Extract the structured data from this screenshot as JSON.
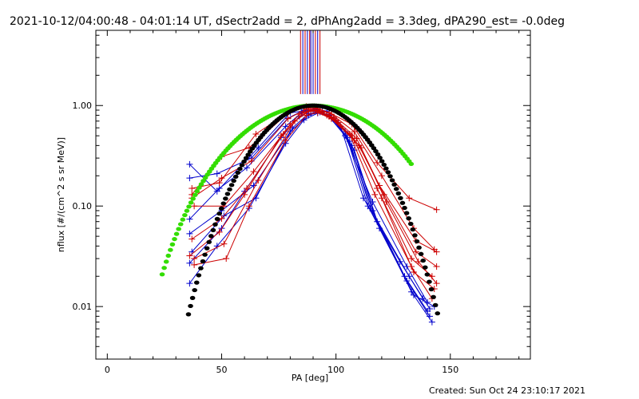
{
  "chart_data": {
    "type": "scatter",
    "title": "2021-10-12/04:00:48 - 04:01:14 UT, dSectr2add = 2, dPhAng2add = 3.3deg, dPA290_est= -0.0deg",
    "xlabel": "PA [deg]",
    "ylabel": "nflux [#/(cm^2 s sr MeV)]",
    "xlim": [
      -5,
      185
    ],
    "ylim": [
      0.003,
      5.6
    ],
    "yscale": "log",
    "grid": false,
    "x_ticks": [
      {
        "value": 0,
        "label": "0"
      },
      {
        "value": 50,
        "label": "50"
      },
      {
        "value": 100,
        "label": "100"
      },
      {
        "value": 150,
        "label": "150"
      }
    ],
    "y_ticks": [
      {
        "value": 0.01,
        "label": "0.01"
      },
      {
        "value": 0.1,
        "label": "0.10"
      },
      {
        "value": 1.0,
        "label": "1.00"
      }
    ],
    "markers": [
      {
        "x": 84.5,
        "color": "#cc0000"
      },
      {
        "x": 85.5,
        "color": "#0000cc"
      },
      {
        "x": 86.5,
        "color": "#cc0000"
      },
      {
        "x": 87.5,
        "color": "#0000cc"
      },
      {
        "x": 88.5,
        "color": "#cc0000"
      },
      {
        "x": 89.0,
        "color": "#0000cc"
      },
      {
        "x": 90.0,
        "color": "#0000cc"
      },
      {
        "x": 91.0,
        "color": "#cc0000"
      },
      {
        "x": 92.0,
        "color": "#0000cc"
      },
      {
        "x": 93.0,
        "color": "#cc0000"
      }
    ],
    "series": [
      {
        "color": "#0000cc",
        "style": "line+plus",
        "x": [
          36,
          48,
          66,
          80,
          86,
          90,
          94,
          102,
          112,
          128,
          138
        ],
        "y": [
          0.26,
          0.14,
          0.38,
          0.85,
          0.88,
          0.9,
          0.86,
          0.62,
          0.12,
          0.028,
          0.012
        ]
      },
      {
        "color": "#0000cc",
        "style": "line+plus",
        "x": [
          36,
          48,
          63,
          79,
          86,
          91,
          96,
          104,
          114,
          130,
          140
        ],
        "y": [
          0.19,
          0.21,
          0.3,
          0.75,
          0.9,
          0.92,
          0.88,
          0.55,
          0.1,
          0.02,
          0.009
        ]
      },
      {
        "color": "#0000cc",
        "style": "line+plus",
        "x": [
          36,
          49,
          61,
          78,
          85,
          91,
          97,
          105,
          116,
          131,
          141
        ],
        "y": [
          0.074,
          0.15,
          0.24,
          0.62,
          0.85,
          0.9,
          0.8,
          0.48,
          0.09,
          0.018,
          0.008
        ]
      },
      {
        "color": "#0000cc",
        "style": "line+plus",
        "x": [
          36,
          50,
          64,
          80,
          88,
          93,
          99,
          107,
          118,
          133,
          142
        ],
        "y": [
          0.053,
          0.09,
          0.16,
          0.55,
          0.8,
          0.86,
          0.74,
          0.4,
          0.07,
          0.014,
          0.007
        ]
      },
      {
        "color": "#0000cc",
        "style": "line+plus",
        "x": [
          36,
          50,
          60,
          76,
          84,
          89,
          96,
          104,
          116,
          131,
          140
        ],
        "y": [
          0.027,
          0.06,
          0.14,
          0.48,
          0.78,
          0.88,
          0.82,
          0.5,
          0.11,
          0.025,
          0.011
        ]
      },
      {
        "color": "#0000cc",
        "style": "line+plus",
        "x": [
          36,
          48,
          62,
          78,
          86,
          92,
          98,
          106,
          115,
          132,
          141
        ],
        "y": [
          0.017,
          0.04,
          0.095,
          0.42,
          0.72,
          0.84,
          0.77,
          0.44,
          0.095,
          0.02,
          0.0095
        ]
      },
      {
        "color": "#0000cc",
        "style": "line+plus",
        "x": [
          37,
          51,
          65,
          81,
          88,
          94,
          100,
          108,
          119,
          134,
          143
        ],
        "y": [
          0.035,
          0.08,
          0.12,
          0.6,
          0.83,
          0.87,
          0.7,
          0.36,
          0.06,
          0.013,
          0.01
        ]
      },
      {
        "color": "#cc0000",
        "style": "line+plus",
        "x": [
          37,
          49,
          65,
          81,
          87,
          91,
          97,
          107,
          118,
          132,
          144
        ],
        "y": [
          0.15,
          0.17,
          0.52,
          0.92,
          0.98,
          0.95,
          0.85,
          0.65,
          0.27,
          0.12,
          0.092
        ]
      },
      {
        "color": "#cc0000",
        "style": "line+plus",
        "x": [
          37,
          50,
          62,
          79,
          86,
          92,
          98,
          108,
          120,
          134,
          143
        ],
        "y": [
          0.13,
          0.31,
          0.38,
          0.84,
          0.95,
          0.93,
          0.82,
          0.55,
          0.2,
          0.06,
          0.037
        ]
      },
      {
        "color": "#cc0000",
        "style": "line+plus",
        "x": [
          37,
          50,
          63,
          79,
          87,
          92,
          99,
          109,
          119,
          135,
          144
        ],
        "y": [
          0.12,
          0.19,
          0.28,
          0.74,
          0.92,
          0.9,
          0.76,
          0.47,
          0.16,
          0.045,
          0.035
        ]
      },
      {
        "color": "#cc0000",
        "style": "line+plus",
        "x": [
          38,
          51,
          64,
          80,
          88,
          93,
          100,
          110,
          121,
          135,
          144
        ],
        "y": [
          0.1,
          0.1,
          0.22,
          0.65,
          0.88,
          0.88,
          0.72,
          0.4,
          0.13,
          0.035,
          0.025
        ]
      },
      {
        "color": "#cc0000",
        "style": "line+plus",
        "x": [
          37,
          50,
          61,
          77,
          86,
          91,
          97,
          107,
          118,
          133,
          142
        ],
        "y": [
          0.047,
          0.075,
          0.15,
          0.52,
          0.86,
          0.89,
          0.78,
          0.5,
          0.15,
          0.03,
          0.02
        ]
      },
      {
        "color": "#cc0000",
        "style": "line+plus",
        "x": [
          38,
          51,
          66,
          82,
          89,
          94,
          101,
          111,
          122,
          136,
          144
        ],
        "y": [
          0.03,
          0.042,
          0.18,
          0.7,
          0.9,
          0.86,
          0.68,
          0.38,
          0.11,
          0.028,
          0.017
        ]
      },
      {
        "color": "#cc0000",
        "style": "line+plus",
        "x": [
          38,
          52,
          62,
          78,
          87,
          92,
          98,
          108,
          120,
          134,
          143
        ],
        "y": [
          0.026,
          0.03,
          0.1,
          0.45,
          0.8,
          0.85,
          0.74,
          0.45,
          0.12,
          0.022,
          0.015
        ]
      },
      {
        "color": "#cc0000",
        "style": "line+plus",
        "x": [
          36,
          49,
          60,
          76,
          84,
          90,
          96,
          106,
          117,
          133,
          142
        ],
        "y": [
          0.032,
          0.055,
          0.13,
          0.5,
          0.82,
          0.9,
          0.8,
          0.52,
          0.13,
          0.025,
          0.012
        ]
      }
    ],
    "fits": [
      {
        "color": "#33dd00",
        "style": "dots",
        "center": 90,
        "exponent": 4.3,
        "x_range": [
          24,
          133
        ]
      },
      {
        "color": "#000000",
        "style": "dots",
        "center": 90,
        "exponent": 8.8,
        "x_range": [
          35.5,
          144.5
        ]
      }
    ],
    "footer": "Created: Sun Oct 24 23:10:17 2021"
  }
}
